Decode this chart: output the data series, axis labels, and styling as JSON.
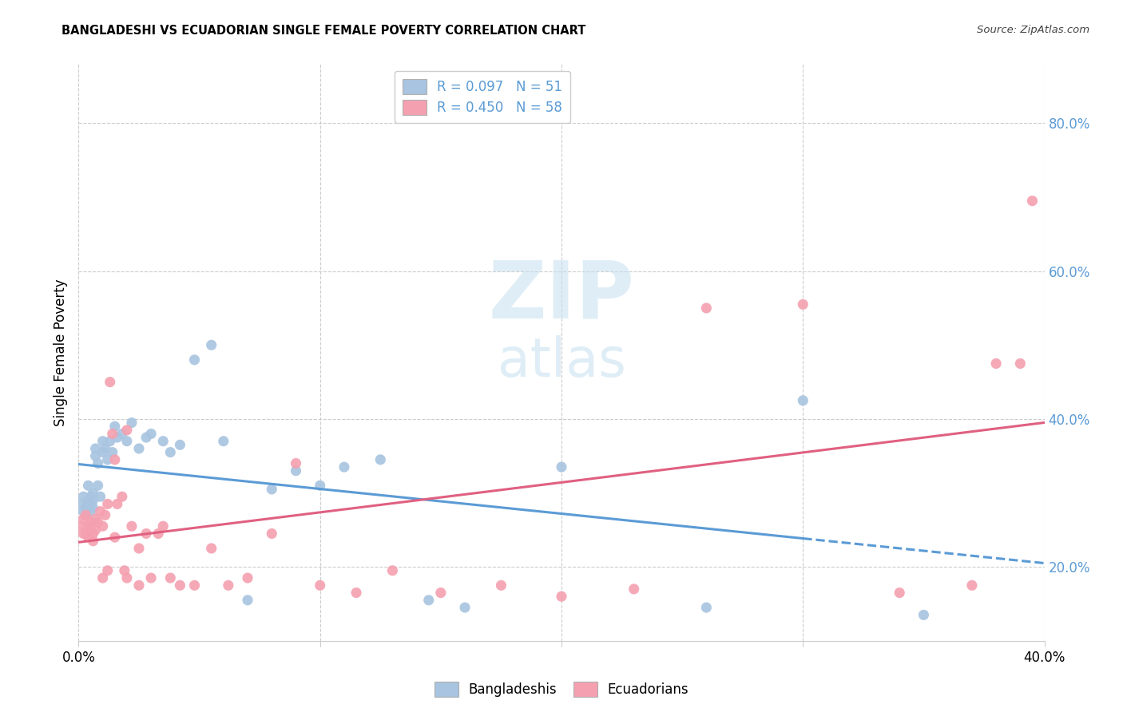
{
  "title": "BANGLADESHI VS ECUADORIAN SINGLE FEMALE POVERTY CORRELATION CHART",
  "source": "Source: ZipAtlas.com",
  "ylabel": "Single Female Poverty",
  "xlim": [
    0.0,
    0.4
  ],
  "ylim": [
    0.1,
    0.88
  ],
  "x_ticks": [
    0.0,
    0.1,
    0.2,
    0.3,
    0.4
  ],
  "x_tick_labels": [
    "0.0%",
    "",
    "",
    "",
    "40.0%"
  ],
  "y_ticks_right": [
    0.2,
    0.4,
    0.6,
    0.8
  ],
  "y_tick_labels_right": [
    "20.0%",
    "40.0%",
    "60.0%",
    "80.0%"
  ],
  "legend_labels": [
    "R = 0.097   N = 51",
    "R = 0.450   N = 58"
  ],
  "bangladeshi_color": "#a8c4e0",
  "ecuadorian_color": "#f4a0b0",
  "trend_blue": "#5b9bd5",
  "trend_pink": "#e06080",
  "background": "#ffffff",
  "grid_color": "#cccccc",
  "bd_x": [
    0.001,
    0.002,
    0.002,
    0.003,
    0.003,
    0.004,
    0.004,
    0.004,
    0.005,
    0.005,
    0.005,
    0.006,
    0.006,
    0.006,
    0.007,
    0.007,
    0.008,
    0.008,
    0.009,
    0.01,
    0.01,
    0.011,
    0.012,
    0.013,
    0.014,
    0.015,
    0.016,
    0.018,
    0.02,
    0.022,
    0.025,
    0.028,
    0.03,
    0.035,
    0.038,
    0.042,
    0.048,
    0.055,
    0.06,
    0.07,
    0.08,
    0.09,
    0.1,
    0.11,
    0.125,
    0.145,
    0.16,
    0.2,
    0.26,
    0.3,
    0.35
  ],
  "bd_y": [
    0.285,
    0.275,
    0.295,
    0.28,
    0.27,
    0.31,
    0.29,
    0.285,
    0.295,
    0.275,
    0.285,
    0.28,
    0.29,
    0.3,
    0.36,
    0.35,
    0.31,
    0.34,
    0.295,
    0.37,
    0.355,
    0.36,
    0.345,
    0.37,
    0.355,
    0.39,
    0.375,
    0.38,
    0.37,
    0.395,
    0.36,
    0.375,
    0.38,
    0.37,
    0.355,
    0.365,
    0.48,
    0.5,
    0.37,
    0.155,
    0.305,
    0.33,
    0.31,
    0.335,
    0.345,
    0.155,
    0.145,
    0.335,
    0.145,
    0.425,
    0.135
  ],
  "ec_x": [
    0.001,
    0.002,
    0.002,
    0.003,
    0.003,
    0.004,
    0.004,
    0.005,
    0.005,
    0.006,
    0.006,
    0.007,
    0.007,
    0.008,
    0.009,
    0.01,
    0.011,
    0.012,
    0.013,
    0.014,
    0.015,
    0.016,
    0.018,
    0.019,
    0.02,
    0.022,
    0.025,
    0.028,
    0.03,
    0.033,
    0.035,
    0.038,
    0.042,
    0.048,
    0.055,
    0.062,
    0.07,
    0.08,
    0.09,
    0.1,
    0.115,
    0.13,
    0.15,
    0.175,
    0.2,
    0.23,
    0.26,
    0.3,
    0.34,
    0.37,
    0.38,
    0.39,
    0.395,
    0.01,
    0.012,
    0.015,
    0.02,
    0.025
  ],
  "ec_y": [
    0.255,
    0.245,
    0.265,
    0.245,
    0.27,
    0.24,
    0.255,
    0.25,
    0.26,
    0.245,
    0.235,
    0.25,
    0.265,
    0.26,
    0.275,
    0.255,
    0.27,
    0.285,
    0.45,
    0.38,
    0.24,
    0.285,
    0.295,
    0.195,
    0.185,
    0.255,
    0.225,
    0.245,
    0.185,
    0.245,
    0.255,
    0.185,
    0.175,
    0.175,
    0.225,
    0.175,
    0.185,
    0.245,
    0.34,
    0.175,
    0.165,
    0.195,
    0.165,
    0.175,
    0.16,
    0.17,
    0.55,
    0.555,
    0.165,
    0.175,
    0.475,
    0.475,
    0.695,
    0.185,
    0.195,
    0.345,
    0.385,
    0.175
  ]
}
